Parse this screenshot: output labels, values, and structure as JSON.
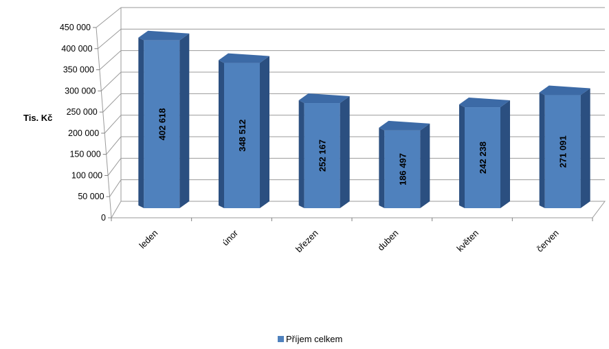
{
  "chart_data": {
    "type": "bar",
    "style": "3d-column",
    "categories": [
      "leden",
      "únor",
      "březen",
      "duben",
      "květen",
      "červen"
    ],
    "series": [
      {
        "name": "Příjem celkem",
        "values": [
          402618,
          348512,
          252167,
          186497,
          242238,
          271091
        ],
        "labels": [
          "402 618",
          "348 512",
          "252 167",
          "186 497",
          "242 238",
          "271 091"
        ],
        "color": "#4F81BD"
      }
    ],
    "ylabel": "Tis. Kč",
    "ylim": [
      0,
      450000
    ],
    "yticks": [
      {
        "value": 0,
        "label": "0"
      },
      {
        "value": 50000,
        "label": "50 000"
      },
      {
        "value": 100000,
        "label": "100 000"
      },
      {
        "value": 150000,
        "label": "150 000"
      },
      {
        "value": 200000,
        "label": "200 000"
      },
      {
        "value": 250000,
        "label": "250 000"
      },
      {
        "value": 300000,
        "label": "300 000"
      },
      {
        "value": 350000,
        "label": "350 000"
      },
      {
        "value": 400000,
        "label": "400 000"
      },
      {
        "value": 450000,
        "label": "450 000"
      }
    ],
    "grid": true,
    "legend_position": "bottom"
  }
}
